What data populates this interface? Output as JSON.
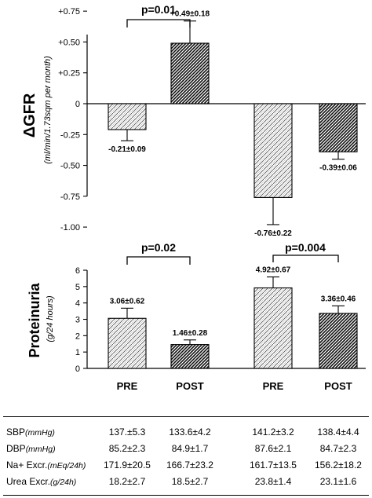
{
  "colors": {
    "ink": "#000000",
    "pre_hatch": "#ffffff",
    "post_hatch": "#222222"
  },
  "chart_data": [
    {
      "type": "bar",
      "panel": "gfr-left",
      "ylabel": "ΔGFR",
      "ylabel_unit": "(ml/min/1.73sqm per month)",
      "ylim": [
        -1.0,
        0.75
      ],
      "yticks": [
        0.75,
        0.5,
        0.25,
        0,
        -0.25,
        -0.5,
        -0.75,
        -1.0
      ],
      "ytick_labels": [
        "+0.75",
        "+0.50",
        "+0.25",
        "0",
        "-0.25",
        "-0.50",
        "-0.75",
        "-1.00"
      ],
      "categories": [
        "PRE",
        "POST"
      ],
      "values": [
        -0.21,
        0.49
      ],
      "errors": [
        0.09,
        0.18
      ],
      "value_labels": [
        "-0.21±0.09",
        "+0.49±0.18"
      ],
      "significance": "p=0.01"
    },
    {
      "type": "bar",
      "panel": "gfr-right",
      "categories": [
        "PRE",
        "POST"
      ],
      "values": [
        -0.76,
        -0.39
      ],
      "errors": [
        0.22,
        0.06
      ],
      "value_labels": [
        "-0.76±0.22",
        "-0.39±0.06"
      ]
    },
    {
      "type": "bar",
      "panel": "proteinuria-left",
      "ylabel": "Proteinuria",
      "ylabel_unit": "(g/24 hours)",
      "ylim": [
        0,
        6
      ],
      "yticks": [
        0,
        1,
        2,
        3,
        4,
        5,
        6
      ],
      "ytick_labels": [
        "0",
        "1",
        "2",
        "3",
        "4",
        "5",
        "6"
      ],
      "categories": [
        "PRE",
        "POST"
      ],
      "values": [
        3.06,
        1.46
      ],
      "errors": [
        0.62,
        0.28
      ],
      "value_labels": [
        "3.06±0.62",
        "1.46±0.28"
      ],
      "significance": "p=0.02"
    },
    {
      "type": "bar",
      "panel": "proteinuria-right",
      "categories": [
        "PRE",
        "POST"
      ],
      "values": [
        4.92,
        3.36
      ],
      "errors": [
        0.67,
        0.46
      ],
      "value_labels": [
        "4.92±0.67",
        "3.36±0.46"
      ],
      "significance": "p=0.004"
    }
  ],
  "x_labels": [
    "PRE",
    "POST",
    "PRE",
    "POST"
  ],
  "table": {
    "rows": [
      {
        "label": "SBP",
        "unit": "(mmHg)",
        "values": [
          "137.±5.3",
          "133.6±4.2",
          "141.2±3.2",
          "138.4±4.4"
        ]
      },
      {
        "label": "DBP",
        "unit": "(mmHg)",
        "values": [
          "85.2±2.3",
          "84.9±1.7",
          "87.6±2.1",
          "84.7±2.3"
        ]
      },
      {
        "label": "Na+ Excr.",
        "unit": "(mEq/24h)",
        "values": [
          "171.9±20.5",
          "166.7±23.2",
          "161.7±13.5",
          "156.2±18.2"
        ]
      },
      {
        "label": "Urea Excr.",
        "unit": "(g/24h)",
        "values": [
          "18.2±2.7",
          "18.5±2.7",
          "23.8±1.4",
          "23.1±1.6"
        ]
      }
    ]
  }
}
